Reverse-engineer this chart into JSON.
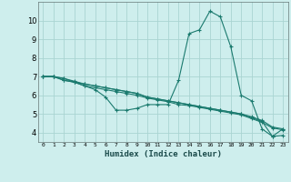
{
  "title": "",
  "xlabel": "Humidex (Indice chaleur)",
  "bg_color": "#ceeeed",
  "grid_color": "#aad4d2",
  "line_color": "#1a7a6e",
  "xlim": [
    -0.5,
    23.5
  ],
  "ylim": [
    3.5,
    11.0
  ],
  "xticks": [
    0,
    1,
    2,
    3,
    4,
    5,
    6,
    7,
    8,
    9,
    10,
    11,
    12,
    13,
    14,
    15,
    16,
    17,
    18,
    19,
    20,
    21,
    22,
    23
  ],
  "yticks": [
    4,
    5,
    6,
    7,
    8,
    9,
    10
  ],
  "series": [
    [
      7.0,
      7.0,
      6.8,
      6.7,
      6.5,
      6.3,
      5.9,
      5.2,
      5.2,
      5.3,
      5.5,
      5.5,
      5.5,
      6.8,
      9.3,
      9.5,
      10.5,
      10.2,
      8.6,
      6.0,
      5.7,
      4.2,
      3.8,
      4.2
    ],
    [
      7.0,
      7.0,
      6.8,
      6.7,
      6.6,
      6.5,
      6.4,
      6.3,
      6.2,
      6.1,
      5.9,
      5.8,
      5.7,
      5.6,
      5.5,
      5.4,
      5.3,
      5.2,
      5.1,
      5.0,
      4.8,
      4.6,
      3.8,
      3.85
    ],
    [
      7.0,
      7.0,
      6.9,
      6.7,
      6.5,
      6.4,
      6.3,
      6.2,
      6.1,
      6.0,
      5.85,
      5.75,
      5.65,
      5.5,
      5.45,
      5.35,
      5.25,
      5.15,
      5.05,
      4.95,
      4.75,
      4.55,
      4.25,
      4.15
    ],
    [
      7.0,
      7.0,
      6.9,
      6.75,
      6.6,
      6.5,
      6.4,
      6.3,
      6.2,
      6.1,
      5.9,
      5.8,
      5.7,
      5.6,
      5.5,
      5.4,
      5.3,
      5.2,
      5.1,
      5.0,
      4.85,
      4.65,
      4.3,
      4.2
    ]
  ]
}
